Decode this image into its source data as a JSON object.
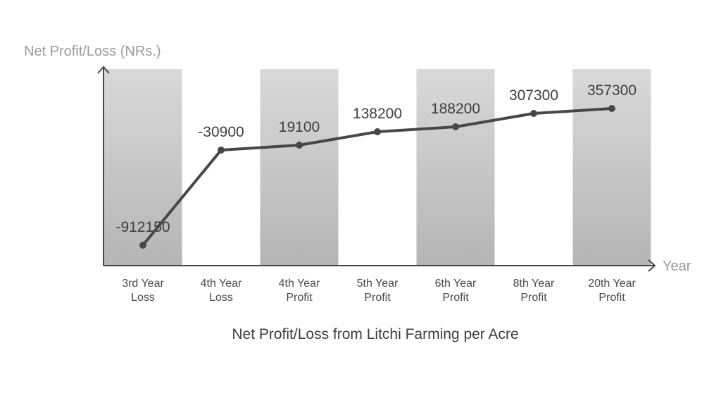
{
  "chart_data": {
    "type": "line",
    "title": "Net Profit/Loss from Litchi Farming per Acre",
    "ylabel": "Net Profit/Loss (NRs.)",
    "xlabel": "Year",
    "categories": [
      [
        "3rd Year",
        "Loss"
      ],
      [
        "4th Year",
        "Loss"
      ],
      [
        "4th Year",
        "Profit"
      ],
      [
        "5th Year",
        "Profit"
      ],
      [
        "6th Year",
        "Profit"
      ],
      [
        "8th Year",
        "Profit"
      ],
      [
        "20th Year",
        "Profit"
      ]
    ],
    "values": [
      -912150,
      -30900,
      19100,
      138200,
      188200,
      307300,
      357300
    ],
    "data_labels": [
      "-912150",
      "-30900",
      "19100",
      "138200",
      "188200",
      "307300",
      "357300"
    ],
    "grid": false,
    "alternating_bands": true,
    "colors": {
      "line": "#474747",
      "axis": "#474747",
      "band_top": "#d9d9d9",
      "band_bottom": "#b5b5b5"
    }
  }
}
